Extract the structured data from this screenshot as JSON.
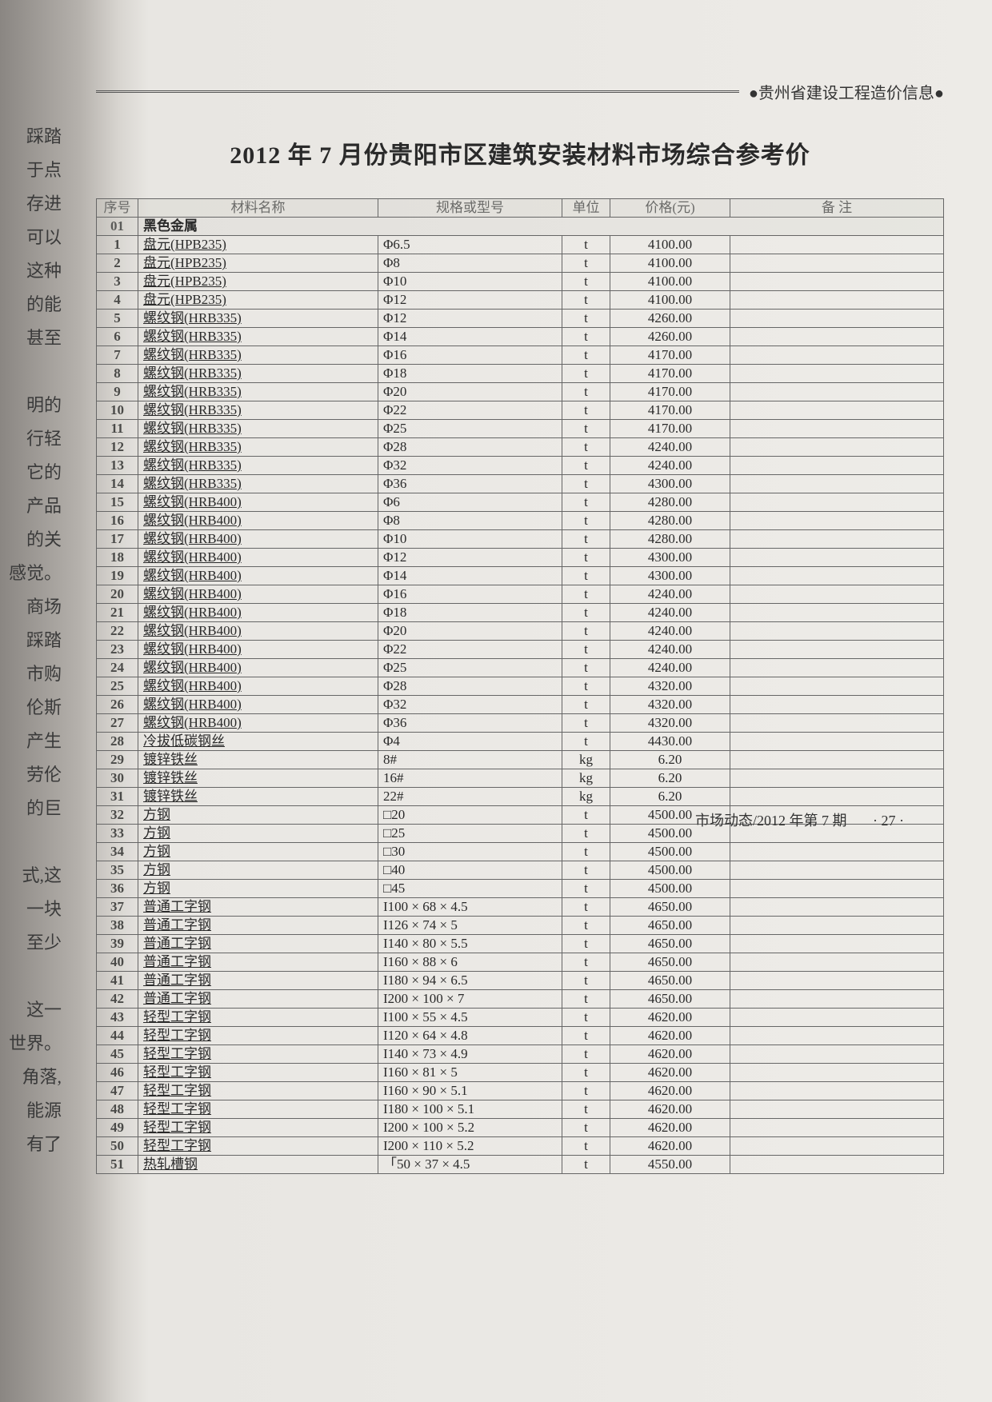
{
  "left_fragments": [
    "踩踏",
    "于点",
    "存进",
    "可以",
    "这种",
    "的能",
    "甚至",
    "",
    "明的",
    "行轻",
    "它的",
    "产品",
    "的关",
    "感觉。",
    "商场",
    "踩踏",
    "市购",
    "伦斯",
    "产生",
    "劳伦",
    "的巨",
    "",
    "式,这",
    "一块",
    "至少",
    "",
    "这一",
    "世界。",
    "角落,",
    "能源",
    "有了"
  ],
  "header_right": "●贵州省建设工程造价信息●",
  "title": "2012 年 7 月份贵阳市区建筑安装材料市场综合参考价",
  "columns": [
    "序号",
    "材料名称",
    "规格或型号",
    "单位",
    "价格(元)",
    "备 注"
  ],
  "section": {
    "no": "01",
    "label": "黑色金属"
  },
  "rows": [
    {
      "no": "1",
      "name": "盘元(HPB235)",
      "spec": "Φ6.5",
      "unit": "t",
      "price": "4100.00",
      "note": ""
    },
    {
      "no": "2",
      "name": "盘元(HPB235)",
      "spec": "Φ8",
      "unit": "t",
      "price": "4100.00",
      "note": ""
    },
    {
      "no": "3",
      "name": "盘元(HPB235)",
      "spec": "Φ10",
      "unit": "t",
      "price": "4100.00",
      "note": ""
    },
    {
      "no": "4",
      "name": "盘元(HPB235)",
      "spec": "Φ12",
      "unit": "t",
      "price": "4100.00",
      "note": ""
    },
    {
      "no": "5",
      "name": "螺纹钢(HRB335)",
      "spec": "Φ12",
      "unit": "t",
      "price": "4260.00",
      "note": ""
    },
    {
      "no": "6",
      "name": "螺纹钢(HRB335)",
      "spec": "Φ14",
      "unit": "t",
      "price": "4260.00",
      "note": ""
    },
    {
      "no": "7",
      "name": "螺纹钢(HRB335)",
      "spec": "Φ16",
      "unit": "t",
      "price": "4170.00",
      "note": ""
    },
    {
      "no": "8",
      "name": "螺纹钢(HRB335)",
      "spec": "Φ18",
      "unit": "t",
      "price": "4170.00",
      "note": ""
    },
    {
      "no": "9",
      "name": "螺纹钢(HRB335)",
      "spec": "Φ20",
      "unit": "t",
      "price": "4170.00",
      "note": ""
    },
    {
      "no": "10",
      "name": "螺纹钢(HRB335)",
      "spec": "Φ22",
      "unit": "t",
      "price": "4170.00",
      "note": ""
    },
    {
      "no": "11",
      "name": "螺纹钢(HRB335)",
      "spec": "Φ25",
      "unit": "t",
      "price": "4170.00",
      "note": ""
    },
    {
      "no": "12",
      "name": "螺纹钢(HRB335)",
      "spec": "Φ28",
      "unit": "t",
      "price": "4240.00",
      "note": ""
    },
    {
      "no": "13",
      "name": "螺纹钢(HRB335)",
      "spec": "Φ32",
      "unit": "t",
      "price": "4240.00",
      "note": ""
    },
    {
      "no": "14",
      "name": "螺纹钢(HRB335)",
      "spec": "Φ36",
      "unit": "t",
      "price": "4300.00",
      "note": ""
    },
    {
      "no": "15",
      "name": "螺纹钢(HRB400)",
      "spec": "Φ6",
      "unit": "t",
      "price": "4280.00",
      "note": ""
    },
    {
      "no": "16",
      "name": "螺纹钢(HRB400)",
      "spec": "Φ8",
      "unit": "t",
      "price": "4280.00",
      "note": ""
    },
    {
      "no": "17",
      "name": "螺纹钢(HRB400)",
      "spec": "Φ10",
      "unit": "t",
      "price": "4280.00",
      "note": ""
    },
    {
      "no": "18",
      "name": "螺纹钢(HRB400)",
      "spec": "Φ12",
      "unit": "t",
      "price": "4300.00",
      "note": ""
    },
    {
      "no": "19",
      "name": "螺纹钢(HRB400)",
      "spec": "Φ14",
      "unit": "t",
      "price": "4300.00",
      "note": ""
    },
    {
      "no": "20",
      "name": "螺纹钢(HRB400)",
      "spec": "Φ16",
      "unit": "t",
      "price": "4240.00",
      "note": ""
    },
    {
      "no": "21",
      "name": "螺纹钢(HRB400)",
      "spec": "Φ18",
      "unit": "t",
      "price": "4240.00",
      "note": ""
    },
    {
      "no": "22",
      "name": "螺纹钢(HRB400)",
      "spec": "Φ20",
      "unit": "t",
      "price": "4240.00",
      "note": ""
    },
    {
      "no": "23",
      "name": "螺纹钢(HRB400)",
      "spec": "Φ22",
      "unit": "t",
      "price": "4240.00",
      "note": ""
    },
    {
      "no": "24",
      "name": "螺纹钢(HRB400)",
      "spec": "Φ25",
      "unit": "t",
      "price": "4240.00",
      "note": ""
    },
    {
      "no": "25",
      "name": "螺纹钢(HRB400)",
      "spec": "Φ28",
      "unit": "t",
      "price": "4320.00",
      "note": ""
    },
    {
      "no": "26",
      "name": "螺纹钢(HRB400)",
      "spec": "Φ32",
      "unit": "t",
      "price": "4320.00",
      "note": ""
    },
    {
      "no": "27",
      "name": "螺纹钢(HRB400)",
      "spec": "Φ36",
      "unit": "t",
      "price": "4320.00",
      "note": ""
    },
    {
      "no": "28",
      "name": "冷拔低碳钢丝",
      "spec": "Φ4",
      "unit": "t",
      "price": "4430.00",
      "note": ""
    },
    {
      "no": "29",
      "name": "镀锌铁丝",
      "spec": "8#",
      "unit": "kg",
      "price": "6.20",
      "note": ""
    },
    {
      "no": "30",
      "name": "镀锌铁丝",
      "spec": "16#",
      "unit": "kg",
      "price": "6.20",
      "note": ""
    },
    {
      "no": "31",
      "name": "镀锌铁丝",
      "spec": "22#",
      "unit": "kg",
      "price": "6.20",
      "note": ""
    },
    {
      "no": "32",
      "name": "方钢",
      "spec": "□20",
      "unit": "t",
      "price": "4500.00",
      "note": ""
    },
    {
      "no": "33",
      "name": "方钢",
      "spec": "□25",
      "unit": "t",
      "price": "4500.00",
      "note": ""
    },
    {
      "no": "34",
      "name": "方钢",
      "spec": "□30",
      "unit": "t",
      "price": "4500.00",
      "note": ""
    },
    {
      "no": "35",
      "name": "方钢",
      "spec": "□40",
      "unit": "t",
      "price": "4500.00",
      "note": ""
    },
    {
      "no": "36",
      "name": "方钢",
      "spec": "□45",
      "unit": "t",
      "price": "4500.00",
      "note": ""
    },
    {
      "no": "37",
      "name": "普通工字钢",
      "spec": "I100 × 68 × 4.5",
      "unit": "t",
      "price": "4650.00",
      "note": ""
    },
    {
      "no": "38",
      "name": "普通工字钢",
      "spec": "I126 × 74 × 5",
      "unit": "t",
      "price": "4650.00",
      "note": ""
    },
    {
      "no": "39",
      "name": "普通工字钢",
      "spec": "I140 × 80 × 5.5",
      "unit": "t",
      "price": "4650.00",
      "note": ""
    },
    {
      "no": "40",
      "name": "普通工字钢",
      "spec": "I160 × 88 × 6",
      "unit": "t",
      "price": "4650.00",
      "note": ""
    },
    {
      "no": "41",
      "name": "普通工字钢",
      "spec": "I180 × 94 × 6.5",
      "unit": "t",
      "price": "4650.00",
      "note": ""
    },
    {
      "no": "42",
      "name": "普通工字钢",
      "spec": "I200 × 100 × 7",
      "unit": "t",
      "price": "4650.00",
      "note": ""
    },
    {
      "no": "43",
      "name": "轻型工字钢",
      "spec": "I100 × 55 × 4.5",
      "unit": "t",
      "price": "4620.00",
      "note": ""
    },
    {
      "no": "44",
      "name": "轻型工字钢",
      "spec": "I120 × 64 × 4.8",
      "unit": "t",
      "price": "4620.00",
      "note": ""
    },
    {
      "no": "45",
      "name": "轻型工字钢",
      "spec": "I140 × 73 × 4.9",
      "unit": "t",
      "price": "4620.00",
      "note": ""
    },
    {
      "no": "46",
      "name": "轻型工字钢",
      "spec": "I160 × 81 × 5",
      "unit": "t",
      "price": "4620.00",
      "note": ""
    },
    {
      "no": "47",
      "name": "轻型工字钢",
      "spec": "I160 × 90 × 5.1",
      "unit": "t",
      "price": "4620.00",
      "note": ""
    },
    {
      "no": "48",
      "name": "轻型工字钢",
      "spec": "I180 × 100 × 5.1",
      "unit": "t",
      "price": "4620.00",
      "note": ""
    },
    {
      "no": "49",
      "name": "轻型工字钢",
      "spec": "I200 × 100 × 5.2",
      "unit": "t",
      "price": "4620.00",
      "note": ""
    },
    {
      "no": "50",
      "name": "轻型工字钢",
      "spec": "I200 × 110 × 5.2",
      "unit": "t",
      "price": "4620.00",
      "note": ""
    },
    {
      "no": "51",
      "name": "热轧槽钢",
      "spec": "「50 × 37 × 4.5",
      "unit": "t",
      "price": "4550.00",
      "note": ""
    }
  ],
  "footer": {
    "left": "市场动态/2012 年第 7 期",
    "page": "· 27 ·"
  }
}
